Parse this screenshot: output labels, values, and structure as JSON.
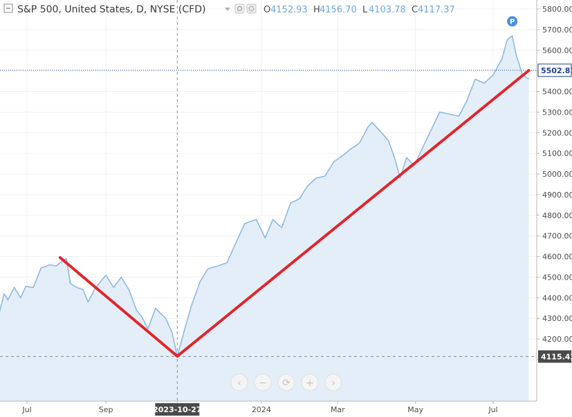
{
  "header": {
    "title": "S&P 500, United States, D, NYSE (CFD)",
    "ohlc": [
      {
        "label": "O",
        "value": "4152.93"
      },
      {
        "label": "H",
        "value": "4156.70"
      },
      {
        "label": "L",
        "value": "4103.78"
      },
      {
        "label": "C",
        "value": "4117.37"
      }
    ]
  },
  "chart_data": {
    "type": "area",
    "title": "S&P 500, United States, D, NYSE (CFD)",
    "xlabel": "",
    "ylabel": "",
    "ylim": [
      4060,
      5840
    ],
    "y_ticks": [
      4100,
      4200,
      4300,
      4400,
      4500,
      4600,
      4700,
      4800,
      4900,
      5000,
      5100,
      5200,
      5300,
      5400,
      5500,
      5600,
      5700,
      5800
    ],
    "x_ticks": [
      {
        "label": "Jul",
        "date": "2023-07-01"
      },
      {
        "label": "Sep",
        "date": "2023-09-01"
      },
      {
        "label": "2023-10-27",
        "date": "2023-10-27",
        "highlight": true
      },
      {
        "label": "2024",
        "date": "2024-01-01"
      },
      {
        "label": "Mar",
        "date": "2024-03-01"
      },
      {
        "label": "May",
        "date": "2024-05-01"
      },
      {
        "label": "Jul",
        "date": "2024-07-01"
      }
    ],
    "series": [
      {
        "x": [
          "2023-06-02",
          "2023-06-06",
          "2023-06-09",
          "2023-06-13",
          "2023-06-16",
          "2023-06-21",
          "2023-06-26",
          "2023-06-30",
          "2023-07-06",
          "2023-07-12",
          "2023-07-19",
          "2023-07-24",
          "2023-07-27",
          "2023-08-01",
          "2023-08-04",
          "2023-08-09",
          "2023-08-14",
          "2023-08-18",
          "2023-08-23",
          "2023-08-28",
          "2023-09-01",
          "2023-09-07",
          "2023-09-13",
          "2023-09-19",
          "2023-09-25",
          "2023-09-29",
          "2023-10-04",
          "2023-10-10",
          "2023-10-13",
          "2023-10-18",
          "2023-10-23",
          "2023-10-27",
          "2023-11-01",
          "2023-11-07",
          "2023-11-14",
          "2023-11-20",
          "2023-11-28",
          "2023-12-05",
          "2023-12-13",
          "2023-12-19",
          "2023-12-28",
          "2024-01-04",
          "2024-01-10",
          "2024-01-17",
          "2024-01-24",
          "2024-01-31",
          "2024-02-06",
          "2024-02-13",
          "2024-02-20",
          "2024-02-27",
          "2024-03-05",
          "2024-03-11",
          "2024-03-18",
          "2024-03-25",
          "2024-03-28",
          "2024-04-03",
          "2024-04-10",
          "2024-04-15",
          "2024-04-19",
          "2024-04-24",
          "2024-04-30",
          "2024-05-06",
          "2024-05-13",
          "2024-05-20",
          "2024-05-28",
          "2024-06-04",
          "2024-06-10",
          "2024-06-17",
          "2024-06-24",
          "2024-07-01",
          "2024-07-08",
          "2024-07-12",
          "2024-07-16",
          "2024-07-19",
          "2024-07-24",
          "2024-07-29"
        ],
        "values": [
          4365,
          4400,
          4320,
          4420,
          4390,
          4450,
          4400,
          4455,
          4450,
          4545,
          4560,
          4555,
          4570,
          4590,
          4470,
          4450,
          4440,
          4380,
          4440,
          4480,
          4510,
          4450,
          4500,
          4440,
          4340,
          4310,
          4250,
          4350,
          4330,
          4300,
          4230,
          4117,
          4230,
          4360,
          4480,
          4540,
          4555,
          4570,
          4680,
          4760,
          4780,
          4690,
          4780,
          4740,
          4860,
          4880,
          4940,
          4980,
          4990,
          5060,
          5090,
          5120,
          5150,
          5230,
          5250,
          5210,
          5160,
          5070,
          4980,
          5080,
          5040,
          5120,
          5210,
          5300,
          5290,
          5280,
          5350,
          5460,
          5440,
          5480,
          5560,
          5650,
          5670,
          5580,
          5480,
          5460
        ]
      }
    ],
    "current_price": "5502.87",
    "crosshair_price": "4115.43",
    "trend_lines": [
      {
        "start": {
          "date": "2023-07-27",
          "value": 4595
        },
        "end": {
          "date": "2023-10-27",
          "value": 4117
        }
      },
      {
        "start": {
          "date": "2023-10-27",
          "value": 4117
        },
        "end": {
          "date": "2024-07-29",
          "value": 5502
        }
      }
    ],
    "marker": {
      "label": "P",
      "date": "2024-07-16",
      "value": 5740
    },
    "colors": {
      "line": "#8fb8e2",
      "area": "#e3eef9",
      "trend": "#e3242b",
      "price_line": "#1f3f8f",
      "marker": "#4a90e2"
    }
  },
  "toolbar": {
    "buttons": [
      {
        "name": "scroll-left-button",
        "icon": "‹"
      },
      {
        "name": "zoom-out-button",
        "icon": "−"
      },
      {
        "name": "reset-button",
        "icon": "⟳"
      },
      {
        "name": "zoom-in-button",
        "icon": "+"
      },
      {
        "name": "scroll-right-button",
        "icon": "›"
      }
    ]
  }
}
